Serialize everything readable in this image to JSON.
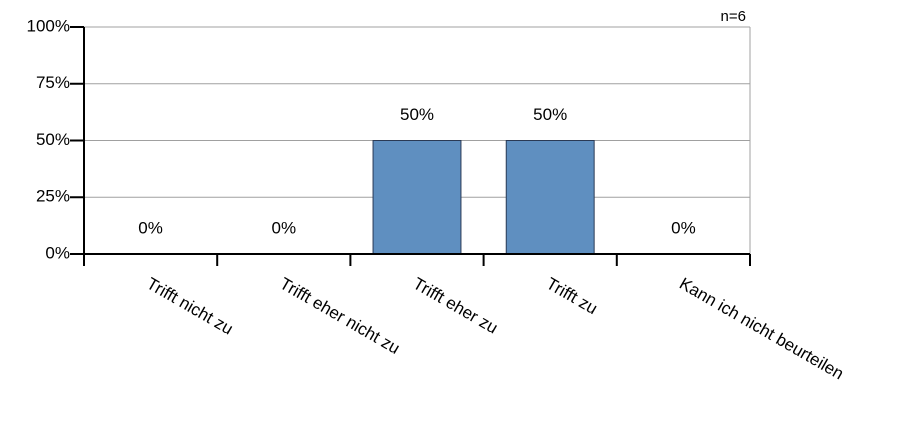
{
  "chart_data": {
    "type": "bar",
    "annotation": "n=6",
    "categories": [
      "Trifft nicht zu",
      "Trifft eher nicht zu",
      "Trifft eher zu",
      "Trifft zu",
      "Kann ich nicht beurteilen"
    ],
    "values": [
      0,
      0,
      50,
      50,
      0
    ],
    "value_labels": [
      "0%",
      "0%",
      "50%",
      "50%",
      "0%"
    ],
    "color": "#5f8fc0",
    "ylim": [
      0,
      100
    ],
    "yticks": [
      {
        "value": 0,
        "label": "0%"
      },
      {
        "value": 25,
        "label": "25%"
      },
      {
        "value": 50,
        "label": "50%"
      },
      {
        "value": 75,
        "label": "75%"
      },
      {
        "value": 100,
        "label": "100%"
      }
    ],
    "grid": true
  }
}
